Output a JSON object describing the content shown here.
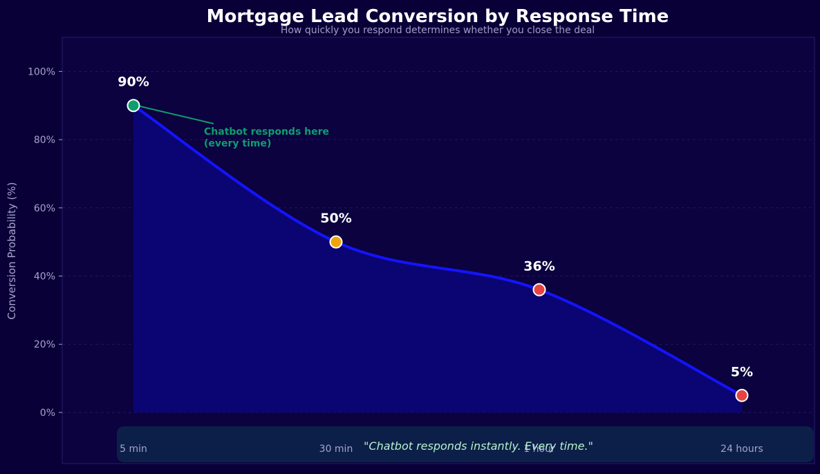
{
  "chart_data": {
    "type": "line",
    "title": "Mortgage Lead Conversion by Response Time",
    "subtitle": "How quickly you respond determines whether you close the deal",
    "ylabel": "Conversion Probability (%)",
    "xlabel": "",
    "categories": [
      "5 min",
      "30 min",
      "1 hour",
      "24 hours"
    ],
    "series": [
      {
        "values": [
          90,
          50,
          36,
          5
        ],
        "data_labels": [
          "90%",
          "50%",
          "36%",
          "5%"
        ],
        "point_colors": [
          "#0e9e6e",
          "#f0a30a",
          "#e74343",
          "#e74343"
        ],
        "line_color": "#1414ff",
        "fill_color": "#0b0573"
      }
    ],
    "ylim": [
      -15,
      110
    ],
    "yticks": [
      0,
      20,
      40,
      60,
      80,
      100
    ],
    "ytick_labels": [
      "0%",
      "20%",
      "40%",
      "60%",
      "80%",
      "100%"
    ],
    "grid": true,
    "annotation": {
      "lines": [
        "Chatbot responds here",
        "(every time)"
      ],
      "point_index": 0,
      "color": "#0e9e6e"
    },
    "banner": {
      "text": "\"Chatbot responds instantly. Every time.\"",
      "text_color": "#b5f2cc",
      "fill_color": "#0c1f48"
    },
    "colors": {
      "background": "#0a0038",
      "plot_background": "#0b023f",
      "title": "#ffffff",
      "subtitle": "#a09cc8",
      "tick": "#a7a3cc",
      "grid": "#1f1a5a"
    }
  }
}
